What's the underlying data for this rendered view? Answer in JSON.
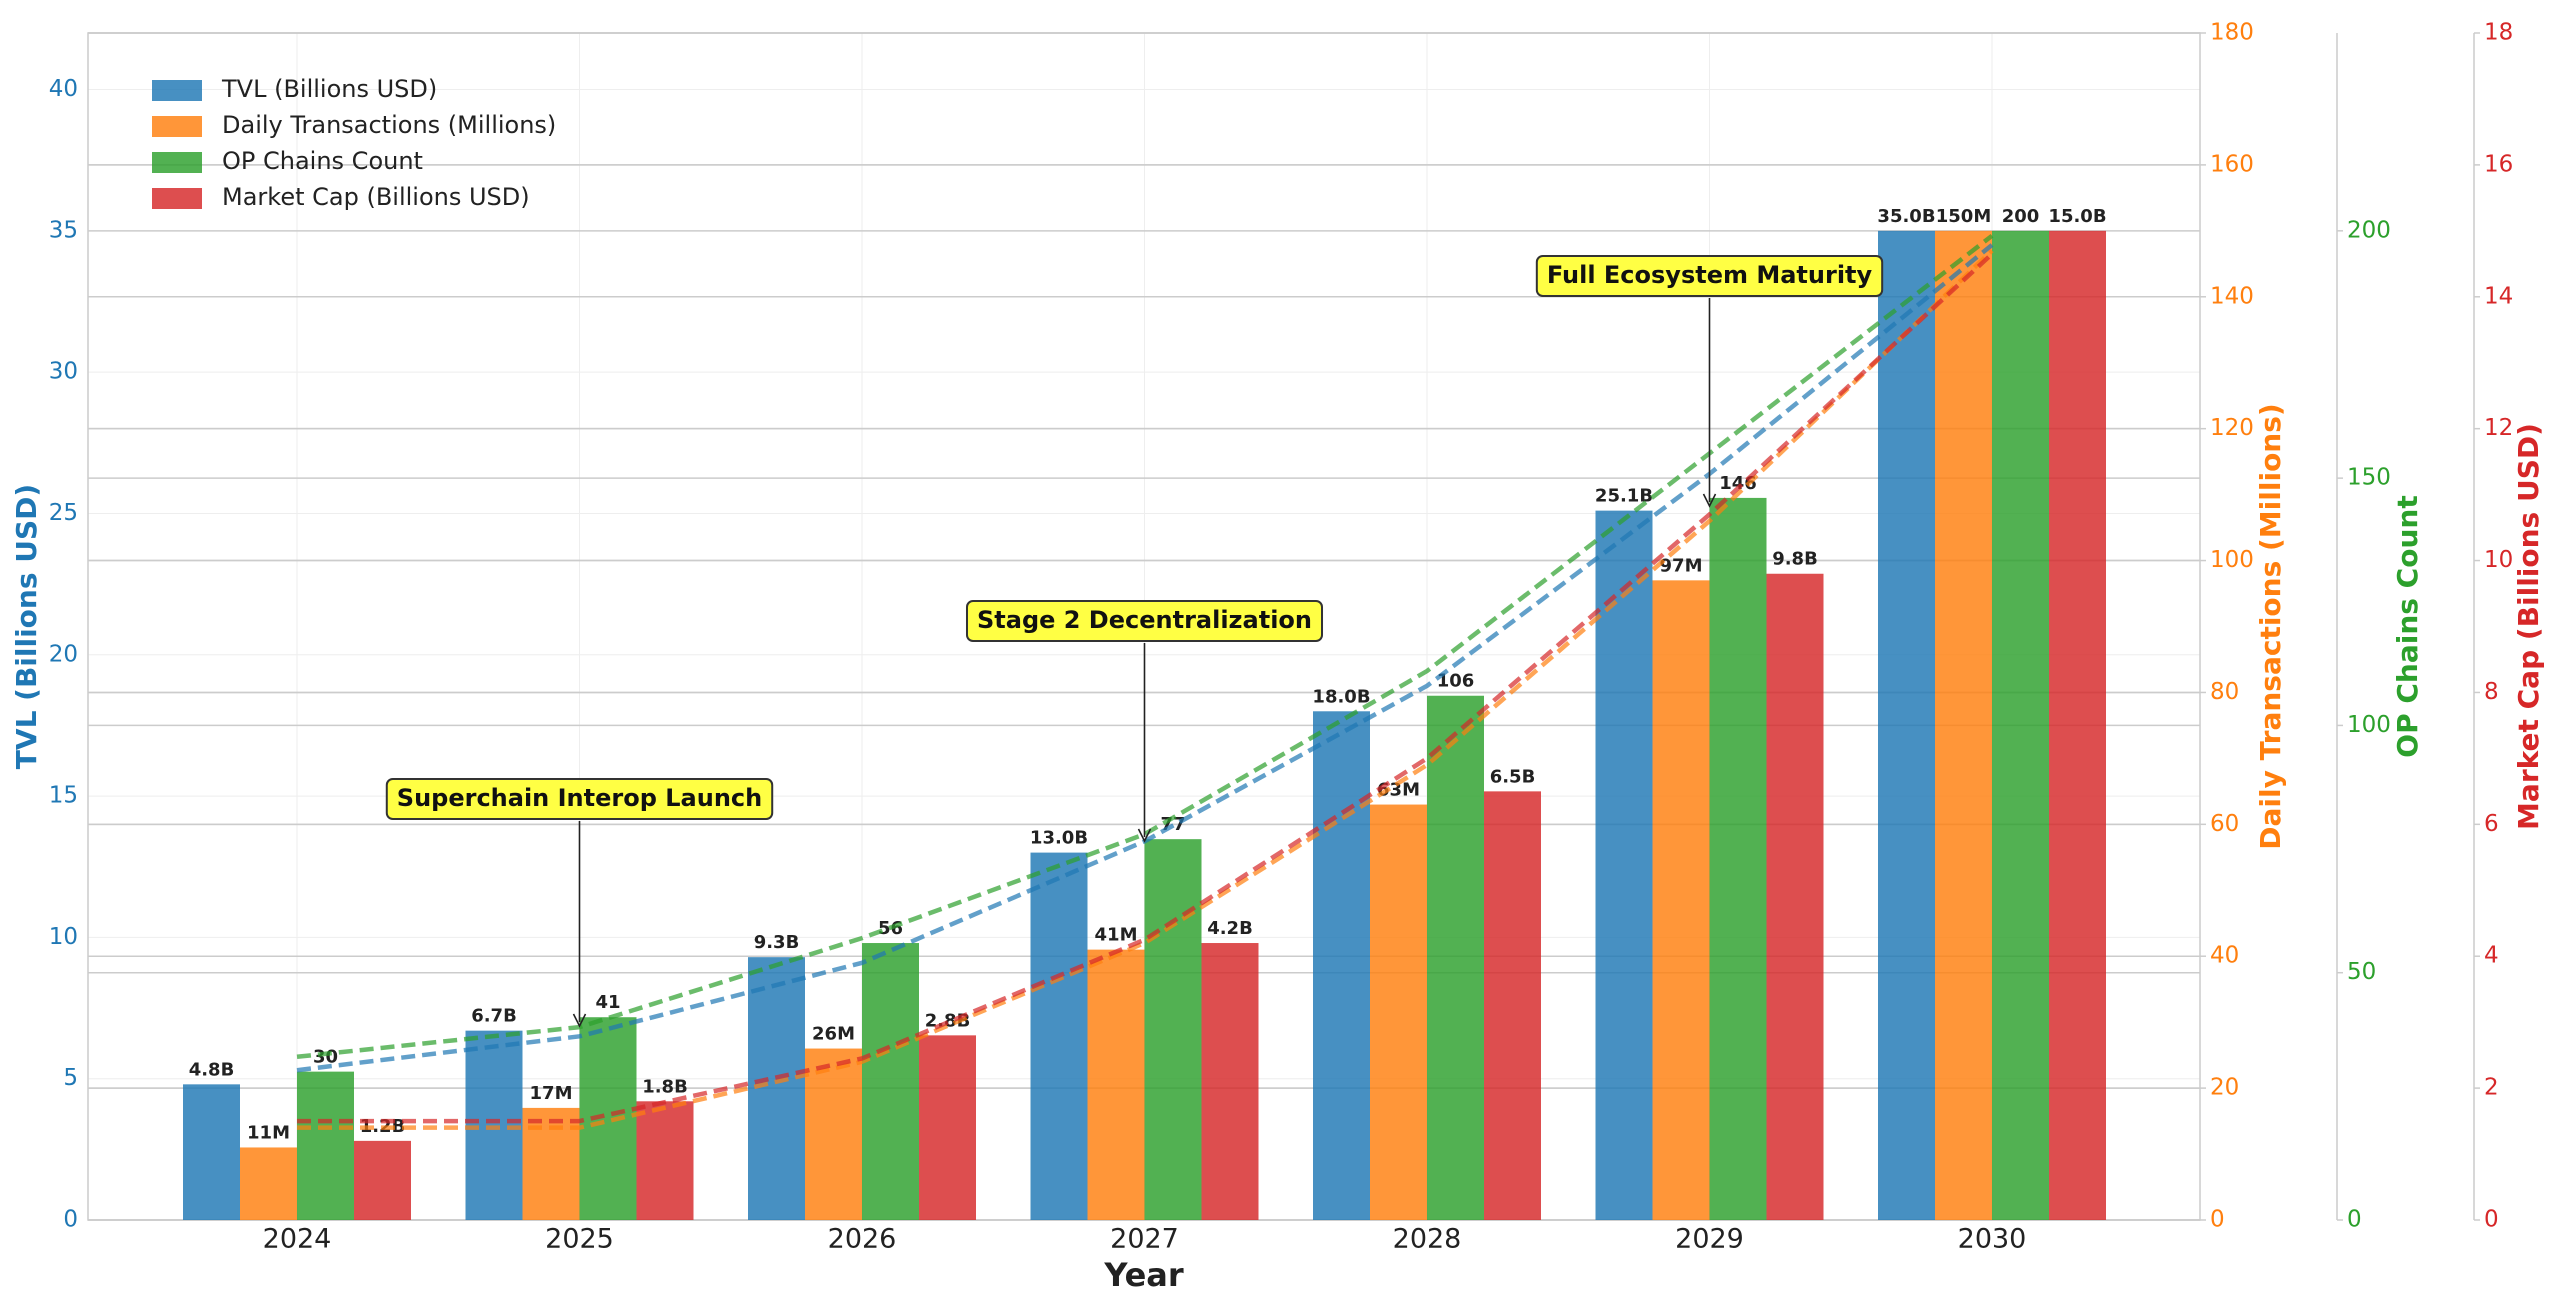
{
  "chart_data": {
    "type": "bar",
    "categories": [
      "2024",
      "2025",
      "2026",
      "2027",
      "2028",
      "2029",
      "2030"
    ],
    "x_label": "Year",
    "y_label": "TVL (Billions USD)",
    "y2_label": "Daily Transactions (Millions)",
    "y3_label": "OP Chains Count",
    "y4_label": "Market Cap (Billions USD)",
    "ylim": [
      0,
      42
    ],
    "yticks": [
      0,
      5,
      10,
      15,
      20,
      25,
      30,
      35,
      40
    ],
    "y2lim": [
      0,
      180
    ],
    "y2ticks": [
      0,
      20,
      40,
      60,
      80,
      100,
      120,
      140,
      160,
      180
    ],
    "y3lim": [
      0,
      240
    ],
    "y3ticks": [
      0,
      50,
      100,
      150,
      200
    ],
    "y4lim": [
      0,
      18
    ],
    "y4ticks": [
      0,
      2,
      4,
      6,
      8,
      10,
      12,
      14,
      16,
      18
    ],
    "grid": true,
    "legend": "upper left",
    "series": [
      {
        "name": "TVL (Billions USD)",
        "color": "#1f77b4",
        "axis": "y",
        "values": [
          4.8,
          6.7,
          9.3,
          13.0,
          18.0,
          25.1,
          35.0
        ],
        "value_labels": [
          "4.8B",
          "6.7B",
          "9.3B",
          "13.0B",
          "18.0B",
          "25.1B",
          "35.0B"
        ],
        "trend": [
          5.3,
          6.5,
          9.1,
          13.4,
          18.9,
          26.4,
          34.5
        ]
      },
      {
        "name": "Daily Transactions (Millions)",
        "color": "#ff7f0e",
        "axis": "y2",
        "values": [
          11,
          17,
          26,
          41,
          63,
          97,
          150
        ],
        "value_labels": [
          "11M",
          "17M",
          "26M",
          "41M",
          "63M",
          "97M",
          "150M"
        ],
        "trend": [
          14,
          14,
          24,
          42,
          69,
          106,
          147
        ]
      },
      {
        "name": "OP Chains Count",
        "color": "#2ca02c",
        "axis": "y3",
        "values": [
          30,
          41,
          56,
          77,
          106,
          146,
          200
        ],
        "trend": [
          33,
          39,
          57,
          78,
          111,
          155,
          199
        ]
      },
      {
        "name": "Market Cap (Billions USD)",
        "color": "#d62728",
        "axis": "y4",
        "values": [
          1.2,
          1.8,
          2.8,
          4.2,
          6.5,
          9.8,
          15.0
        ],
        "value_labels": [
          "1.2B",
          "1.8B",
          "2.8B",
          "4.2B",
          "6.5B",
          "9.8B",
          "15.0B"
        ],
        "trend": [
          1.5,
          1.5,
          2.45,
          4.25,
          7.0,
          10.7,
          14.65
        ]
      }
    ],
    "annotations": [
      "Superchain Interop Launch",
      "Stage 2 Decentralization",
      "Full Ecosystem Maturity"
    ]
  }
}
